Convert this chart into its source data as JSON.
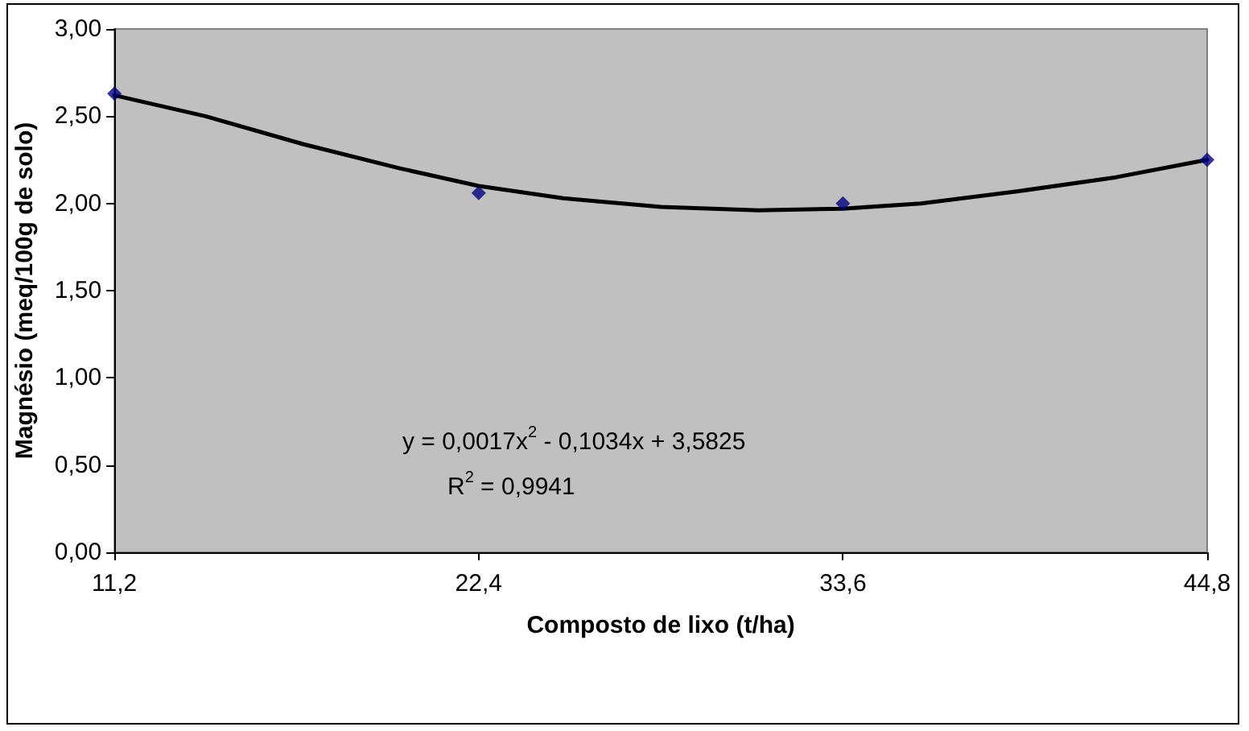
{
  "chart_data": {
    "type": "scatter",
    "xlabel": "Composto de lixo (t/ha)",
    "ylabel": "Magnésio (meq/100g de solo)",
    "xlim": [
      11.2,
      44.8
    ],
    "xticks": [
      {
        "value": 11.2,
        "label": "11,2"
      },
      {
        "value": 22.4,
        "label": "22,4"
      },
      {
        "value": 33.6,
        "label": "33,6"
      },
      {
        "value": 44.8,
        "label": "44,8"
      }
    ],
    "ylim": [
      0,
      3
    ],
    "yticks": [
      {
        "value": 0,
        "label": "0,00"
      },
      {
        "value": 0.5,
        "label": "0,50"
      },
      {
        "value": 1,
        "label": "1,00"
      },
      {
        "value": 1.5,
        "label": "1,50"
      },
      {
        "value": 2,
        "label": "2,00"
      },
      {
        "value": 2.5,
        "label": "2,50"
      },
      {
        "value": 3,
        "label": "3,00"
      }
    ],
    "grid": false,
    "series": [
      {
        "color": "#000080",
        "marker": "diamond",
        "x": [
          11.2,
          22.4,
          33.6,
          44.8
        ],
        "values": [
          2.63,
          2.06,
          2.0,
          2.25
        ]
      },
      {
        "type": "line",
        "color": "#000000",
        "marker": "none",
        "line_style": "solid",
        "x": [
          11.2,
          14,
          17,
          20,
          22.4,
          25,
          28,
          31,
          33.6,
          36,
          39,
          42,
          44.8
        ],
        "values": [
          2.62,
          2.5,
          2.34,
          2.2,
          2.1,
          2.03,
          1.98,
          1.96,
          1.97,
          2.0,
          2.07,
          2.15,
          2.25
        ]
      }
    ],
    "annotations": [
      "y = 0,0017x$^{2}$ - 0,1034x + 3,5825",
      "R$^{2}$ = 0,9941"
    ]
  }
}
